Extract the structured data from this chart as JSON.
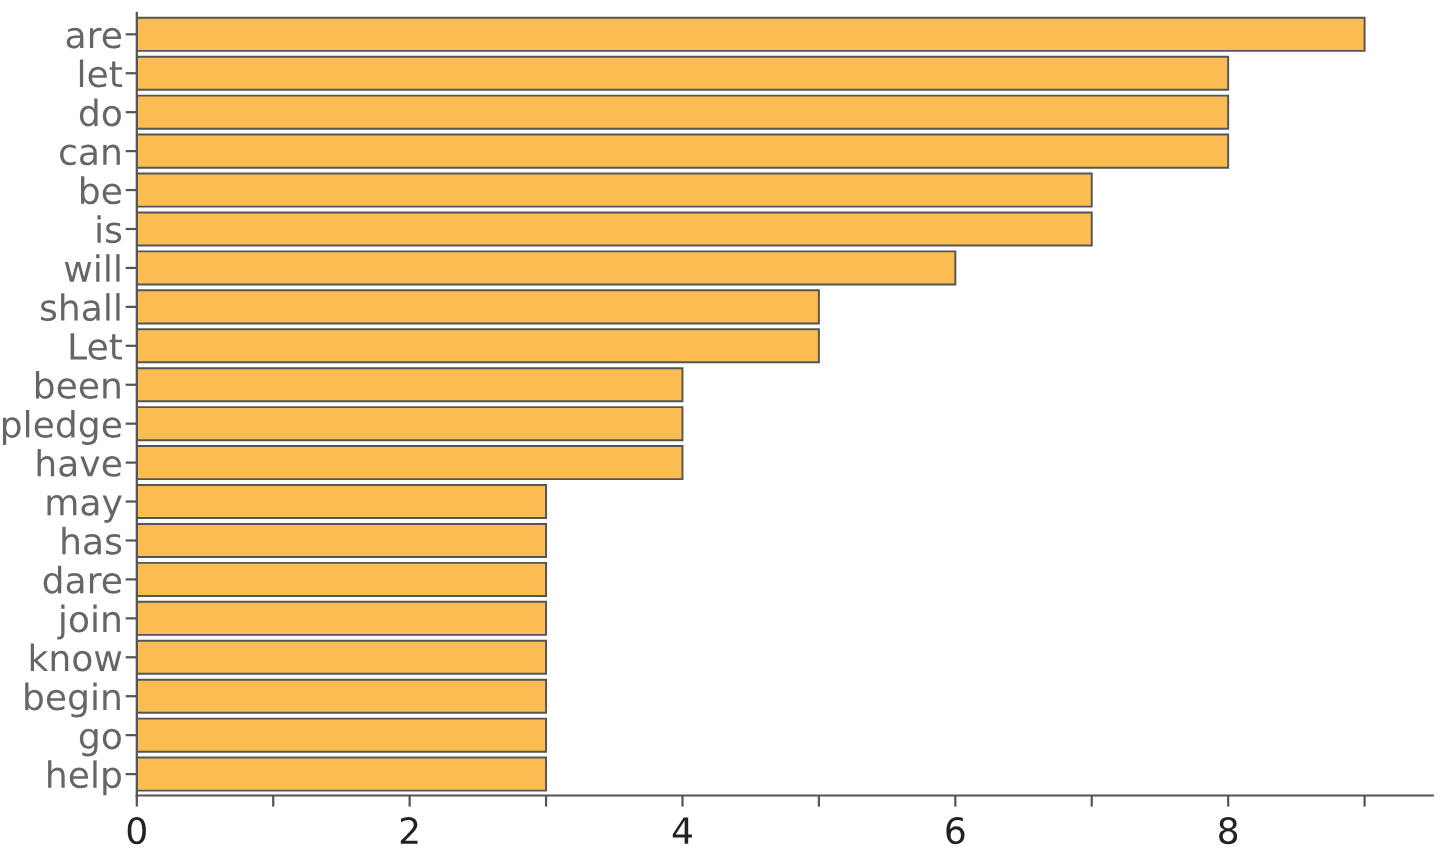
{
  "chart_data": {
    "type": "bar",
    "orientation": "horizontal",
    "categories": [
      "are",
      "let",
      "do",
      "can",
      "be",
      "is",
      "will",
      "shall",
      "Let",
      "been",
      "pledge",
      "have",
      "may",
      "has",
      "dare",
      "join",
      "know",
      "begin",
      "go",
      "help"
    ],
    "values": [
      9,
      8,
      8,
      8,
      7,
      7,
      6,
      5,
      5,
      4,
      4,
      4,
      3,
      3,
      3,
      3,
      3,
      3,
      3,
      3
    ],
    "color": "#fbbc52",
    "xlim": [
      0,
      9.5
    ],
    "xticks": [
      0,
      {
        "value": 1,
        "label": null
      },
      2,
      {
        "value": 3,
        "label": null
      },
      4,
      {
        "value": 5,
        "label": null
      },
      6,
      {
        "value": 7,
        "label": null
      },
      8,
      {
        "value": 9,
        "label": null
      }
    ],
    "grid": false,
    "legend": false
  }
}
